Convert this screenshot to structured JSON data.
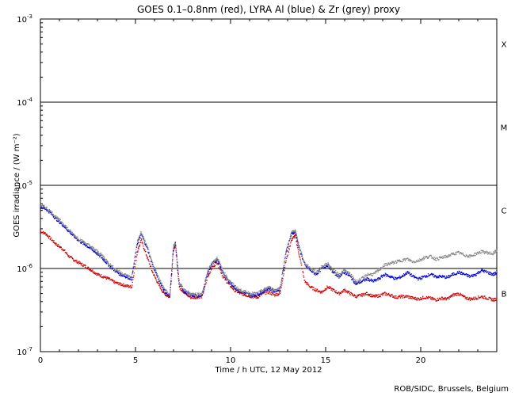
{
  "chart_data": {
    "type": "scatter",
    "title": "GOES 0.1–0.8nm (red), LYRA Al (blue) & Zr (grey) proxy",
    "xlabel": "Time / h UTC, 12 May 2012",
    "ylabel": "GOES irradiance / (W m⁻²)",
    "xlim": [
      0,
      24
    ],
    "ylim": [
      1e-07,
      0.001
    ],
    "y_scale": "log",
    "x_ticks": [
      0,
      5,
      10,
      15,
      20
    ],
    "x_tick_labels": [
      "0",
      "5",
      "10",
      "15",
      "20"
    ],
    "y_ticks": [
      {
        "base": "10",
        "exp": "-7",
        "value": 1e-07
      },
      {
        "base": "10",
        "exp": "-6",
        "value": 1e-06
      },
      {
        "base": "10",
        "exp": "-5",
        "value": 1e-05
      },
      {
        "base": "10",
        "exp": "-4",
        "value": 0.0001
      },
      {
        "base": "10",
        "exp": "-3",
        "value": 0.001
      }
    ],
    "flare_class_lines": [
      1e-06,
      1e-05,
      0.0001
    ],
    "flare_classes": [
      {
        "label": "B",
        "value": 5e-07
      },
      {
        "label": "C",
        "value": 5e-06
      },
      {
        "label": "M",
        "value": 5e-05
      },
      {
        "label": "X",
        "value": 0.0005
      }
    ],
    "grid": false,
    "series": [
      {
        "color": "#cc0000",
        "x": [
          0,
          0.3,
          0.6,
          0.9,
          1.2,
          1.5,
          1.8,
          2.1,
          2.4,
          2.7,
          3.0,
          3.3,
          3.6,
          3.9,
          4.2,
          4.5,
          4.8,
          5.1,
          5.3,
          5.6,
          5.9,
          6.2,
          6.5,
          6.8,
          7.0,
          7.1,
          7.3,
          7.6,
          7.9,
          8.2,
          8.5,
          8.8,
          9.0,
          9.3,
          9.6,
          9.9,
          10.2,
          10.5,
          10.8,
          11.1,
          11.4,
          11.7,
          12.0,
          12.3,
          12.6,
          12.9,
          13.2,
          13.4,
          13.6,
          13.9,
          14.2,
          14.5,
          14.8,
          15.1,
          15.4,
          15.7,
          16.0,
          16.3,
          16.6,
          16.9,
          17.2,
          17.5,
          17.8,
          18.1,
          18.4,
          18.7,
          19.0,
          19.3,
          19.6,
          19.9,
          20.2,
          20.5,
          20.8,
          21.1,
          21.4,
          21.7,
          22.0,
          22.3,
          22.6,
          22.9,
          23.2,
          23.5,
          23.8,
          24.0
        ],
        "y": [
          2.8e-06,
          2.6e-06,
          2.2e-06,
          1.9e-06,
          1.7e-06,
          1.4e-06,
          1.25e-06,
          1.15e-06,
          1.05e-06,
          9.5e-07,
          8.5e-07,
          8e-07,
          7.5e-07,
          6.8e-07,
          6.5e-07,
          6.2e-07,
          6e-07,
          1.6e-06,
          2.2e-06,
          1.4e-06,
          9e-07,
          6.5e-07,
          5e-07,
          4.5e-07,
          1.7e-06,
          1.9e-06,
          6e-07,
          5e-07,
          4.5e-07,
          4.5e-07,
          4.6e-07,
          8e-07,
          1e-06,
          1.2e-06,
          8e-07,
          6.5e-07,
          5.5e-07,
          5e-07,
          4.8e-07,
          4.6e-07,
          4.5e-07,
          5e-07,
          5.2e-07,
          4.8e-07,
          5e-07,
          1.2e-06,
          2.2e-06,
          2.5e-06,
          1.5e-06,
          7e-07,
          6e-07,
          5.5e-07,
          5.2e-07,
          6e-07,
          5.5e-07,
          5e-07,
          5.5e-07,
          5e-07,
          4.6e-07,
          4.8e-07,
          5e-07,
          4.6e-07,
          4.7e-07,
          5e-07,
          4.8e-07,
          4.5e-07,
          4.6e-07,
          4.6e-07,
          4.4e-07,
          4.3e-07,
          4.5e-07,
          4.4e-07,
          4.2e-07,
          4.4e-07,
          4.3e-07,
          4.8e-07,
          5e-07,
          4.5e-07,
          4.3e-07,
          4.4e-07,
          4.6e-07,
          4.4e-07,
          4.2e-07,
          4.3e-07
        ]
      },
      {
        "color": "#0000cc",
        "x": [
          0,
          0.3,
          0.6,
          0.9,
          1.2,
          1.5,
          1.8,
          2.1,
          2.4,
          2.7,
          3.0,
          3.3,
          3.6,
          3.9,
          4.2,
          4.5,
          4.8,
          5.1,
          5.3,
          5.6,
          5.9,
          6.2,
          6.5,
          6.8,
          7.0,
          7.1,
          7.3,
          7.6,
          7.9,
          8.2,
          8.5,
          8.8,
          9.0,
          9.3,
          9.6,
          9.9,
          10.2,
          10.5,
          10.8,
          11.1,
          11.4,
          11.7,
          12.0,
          12.3,
          12.6,
          12.9,
          13.2,
          13.4,
          13.6,
          13.9,
          14.2,
          14.5,
          14.8,
          15.1,
          15.4,
          15.7,
          16.0,
          16.3,
          16.6,
          16.9,
          17.2,
          17.5,
          17.8,
          18.1,
          18.4,
          18.7,
          19.0,
          19.3,
          19.6,
          19.9,
          20.2,
          20.5,
          20.8,
          21.1,
          21.4,
          21.7,
          22.0,
          22.3,
          22.6,
          22.9,
          23.2,
          23.5,
          23.8,
          24.0
        ],
        "y": [
          5.5e-06,
          5.2e-06,
          4.5e-06,
          3.8e-06,
          3.3e-06,
          2.8e-06,
          2.4e-06,
          2.1e-06,
          1.9e-06,
          1.7e-06,
          1.5e-06,
          1.3e-06,
          1.1e-06,
          9.5e-07,
          8.5e-07,
          8e-07,
          7.5e-07,
          2e-06,
          2.6e-06,
          1.8e-06,
          1.1e-06,
          7.5e-07,
          5.5e-07,
          4.5e-07,
          1.8e-06,
          2e-06,
          6.5e-07,
          5.2e-07,
          4.8e-07,
          4.7e-07,
          4.8e-07,
          9e-07,
          1.1e-06,
          1.3e-06,
          9e-07,
          7e-07,
          6e-07,
          5.3e-07,
          5e-07,
          4.8e-07,
          4.8e-07,
          5.3e-07,
          5.8e-07,
          5.3e-07,
          5.6e-07,
          1.5e-06,
          2.6e-06,
          2.8e-06,
          1.8e-06,
          1.1e-06,
          9.5e-07,
          8.5e-07,
          1e-06,
          1.1e-06,
          9e-07,
          8e-07,
          9e-07,
          8e-07,
          6.5e-07,
          7e-07,
          7.5e-07,
          7e-07,
          7.5e-07,
          8.5e-07,
          8e-07,
          7.5e-07,
          8e-07,
          9e-07,
          8e-07,
          7.5e-07,
          8e-07,
          8.5e-07,
          8e-07,
          8e-07,
          7.8e-07,
          8.5e-07,
          9e-07,
          8.5e-07,
          8e-07,
          8.5e-07,
          9.5e-07,
          9e-07,
          8.5e-07,
          8.8e-07
        ]
      },
      {
        "color": "#888888",
        "x": [
          0,
          0.3,
          0.6,
          0.9,
          1.2,
          1.5,
          1.8,
          2.1,
          2.4,
          2.7,
          3.0,
          3.3,
          3.6,
          3.9,
          4.2,
          4.5,
          4.8,
          5.1,
          5.3,
          5.6,
          5.9,
          6.2,
          6.5,
          6.8,
          7.0,
          7.1,
          7.3,
          7.6,
          7.9,
          8.2,
          8.5,
          8.8,
          9.0,
          9.3,
          9.6,
          9.9,
          10.2,
          10.5,
          10.8,
          11.1,
          11.4,
          11.7,
          12.0,
          12.3,
          12.6,
          12.9,
          13.2,
          13.4,
          13.6,
          13.9,
          14.2,
          14.5,
          14.8,
          15.1,
          15.4,
          15.7,
          16.0,
          16.3,
          16.6,
          16.9,
          17.2,
          17.5,
          17.8,
          18.1,
          18.4,
          18.7,
          19.0,
          19.3,
          19.6,
          19.9,
          20.2,
          20.5,
          20.8,
          21.1,
          21.4,
          21.7,
          22.0,
          22.3,
          22.6,
          22.9,
          23.2,
          23.5,
          23.8,
          24.0
        ],
        "y": [
          5.8e-06,
          5.4e-06,
          4.7e-06,
          4e-06,
          3.5e-06,
          2.9e-06,
          2.5e-06,
          2.2e-06,
          2e-06,
          1.8e-06,
          1.6e-06,
          1.4e-06,
          1.15e-06,
          1e-06,
          9e-07,
          8.3e-07,
          7.8e-07,
          2.1e-06,
          2.7e-06,
          1.9e-06,
          1.15e-06,
          7.8e-07,
          5.7e-07,
          4.7e-07,
          1.85e-06,
          2.05e-06,
          6.8e-07,
          5.4e-07,
          5e-07,
          4.9e-07,
          5e-07,
          9.3e-07,
          1.15e-06,
          1.35e-06,
          9.3e-07,
          7.3e-07,
          6.2e-07,
          5.5e-07,
          5.2e-07,
          5e-07,
          5e-07,
          5.5e-07,
          6e-07,
          5.5e-07,
          5.8e-07,
          1.55e-06,
          2.7e-06,
          2.9e-06,
          1.85e-06,
          1.15e-06,
          1e-06,
          9e-07,
          1.05e-06,
          1.15e-06,
          9.5e-07,
          8.5e-07,
          9.5e-07,
          8.5e-07,
          7e-07,
          7.5e-07,
          8.5e-07,
          8.5e-07,
          9.5e-07,
          1.1e-06,
          1.15e-06,
          1.2e-06,
          1.25e-06,
          1.3e-06,
          1.2e-06,
          1.25e-06,
          1.35e-06,
          1.4e-06,
          1.3e-06,
          1.35e-06,
          1.4e-06,
          1.5e-06,
          1.55e-06,
          1.45e-06,
          1.4e-06,
          1.5e-06,
          1.6e-06,
          1.55e-06,
          1.5e-06,
          1.65e-06
        ]
      }
    ]
  },
  "credit": "ROB/SIDC, Brussels, Belgium"
}
